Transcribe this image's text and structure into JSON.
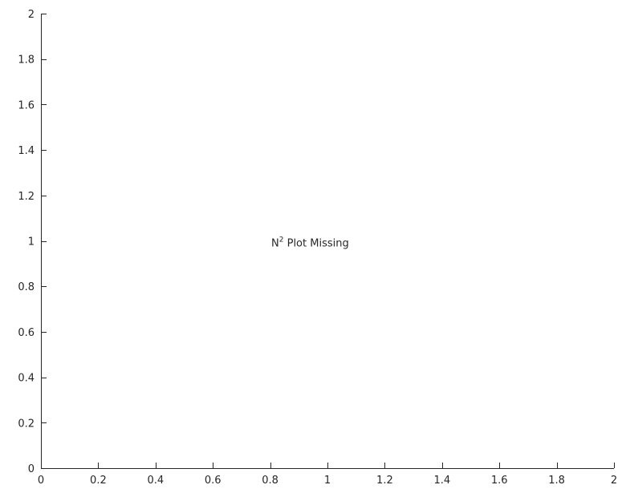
{
  "chart_data": {
    "type": "line",
    "title": "",
    "xlabel": "",
    "ylabel": "",
    "xlim": [
      0,
      2
    ],
    "ylim": [
      0,
      2
    ],
    "x_ticks": [
      0,
      0.2,
      0.4,
      0.6,
      0.8,
      1,
      1.2,
      1.4,
      1.6,
      1.8,
      2
    ],
    "x_tick_labels": [
      "0",
      "0.2",
      "0.4",
      "0.6",
      "0.8",
      "1",
      "1.2",
      "1.4",
      "1.6",
      "1.8",
      "2"
    ],
    "y_ticks": [
      0,
      0.2,
      0.4,
      0.6,
      0.8,
      1,
      1.2,
      1.4,
      1.6,
      1.8,
      2
    ],
    "y_tick_labels": [
      "0",
      "0.2",
      "0.4",
      "0.6",
      "0.8",
      "1",
      "1.2",
      "1.4",
      "1.6",
      "1.8",
      "2"
    ],
    "grid": false,
    "series": [],
    "annotation": {
      "base": "N",
      "superscript": "2",
      "text": " Plot Missing",
      "x": 1,
      "y": 1
    }
  }
}
